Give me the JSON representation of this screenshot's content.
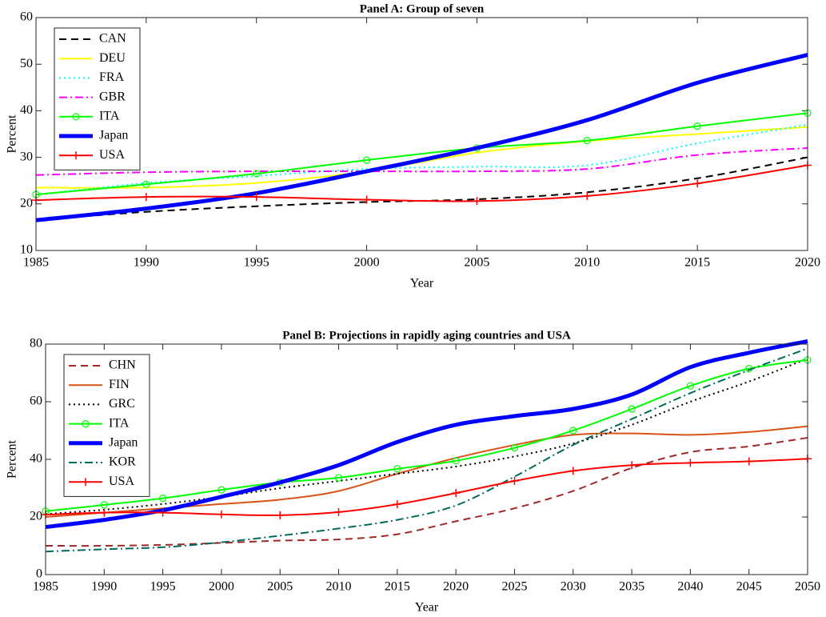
{
  "chart_data": [
    {
      "type": "line",
      "title": "Panel A: Group of seven",
      "xlabel": "Year",
      "ylabel": "Percent",
      "x": [
        1985,
        1990,
        1995,
        2000,
        2005,
        2010,
        2015,
        2020
      ],
      "xlim": [
        1985,
        2020
      ],
      "xticks": [
        1985,
        1990,
        1995,
        2000,
        2005,
        2010,
        2015,
        2020
      ],
      "ylim": [
        10,
        60
      ],
      "yticks": [
        10,
        20,
        30,
        40,
        50,
        60
      ],
      "legend": "upper left",
      "series": [
        {
          "name": "CAN",
          "color": "#000000",
          "style": "dashed",
          "values": [
            16.5,
            18.3,
            19.5,
            20.4,
            21,
            22.5,
            25.5,
            30
          ]
        },
        {
          "name": "DEU",
          "color": "#ffff00",
          "style": "solid",
          "values": [
            23.5,
            23.5,
            24.5,
            27,
            31,
            33.5,
            35,
            36.5
          ]
        },
        {
          "name": "FRA",
          "color": "#00ffff",
          "style": "dotted",
          "values": [
            22,
            24.5,
            26,
            27.5,
            28,
            28.3,
            33,
            37
          ]
        },
        {
          "name": "GBR",
          "color": "#ff00ff",
          "style": "dashdot",
          "values": [
            26.2,
            26.8,
            27,
            27,
            27,
            27.5,
            30.5,
            32
          ]
        },
        {
          "name": "ITA",
          "color": "#00ff00",
          "style": "solid",
          "marker": "circle",
          "values": [
            22,
            24.2,
            26.5,
            29.4,
            32,
            33.6,
            36.7,
            39.5
          ]
        },
        {
          "name": "Japan",
          "color": "#0000ff",
          "style": "thick",
          "values": [
            16.5,
            19,
            22.3,
            27,
            32,
            38,
            46,
            52
          ]
        },
        {
          "name": "USA",
          "color": "#ff0000",
          "style": "solid",
          "marker": "plus",
          "values": [
            20.8,
            21.5,
            21.5,
            20.9,
            20.6,
            21.7,
            24.4,
            28.3
          ]
        }
      ]
    },
    {
      "type": "line",
      "title": "Panel B: Projections in rapidly aging countries and USA",
      "xlabel": "Year",
      "ylabel": "Percent",
      "x": [
        1985,
        1990,
        1995,
        2000,
        2005,
        2010,
        2015,
        2020,
        2025,
        2030,
        2035,
        2040,
        2045,
        2050
      ],
      "xlim": [
        1985,
        2050
      ],
      "xticks": [
        1985,
        1990,
        1995,
        2000,
        2005,
        2010,
        2015,
        2020,
        2025,
        2030,
        2035,
        2040,
        2045,
        2050
      ],
      "ylim": [
        0,
        80
      ],
      "yticks": [
        0,
        20,
        40,
        60,
        80
      ],
      "legend": "upper left",
      "series": [
        {
          "name": "CHN",
          "color": "#a02828",
          "style": "dashed",
          "values": [
            10,
            10,
            10.3,
            11,
            11.8,
            12.2,
            14,
            18.5,
            23,
            29,
            37,
            42.5,
            44.5,
            47.5
          ]
        },
        {
          "name": "FIN",
          "color": "#d95319",
          "style": "solid",
          "values": [
            20,
            21.5,
            23,
            24.5,
            26,
            29,
            35,
            40.5,
            45,
            48.5,
            49,
            48.5,
            49.5,
            51.5
          ]
        },
        {
          "name": "GRC",
          "color": "#000000",
          "style": "dotted",
          "values": [
            21,
            22.5,
            24.5,
            27,
            30,
            32.5,
            35,
            37.5,
            41,
            45.5,
            52,
            60,
            67,
            75
          ]
        },
        {
          "name": "ITA",
          "color": "#00ff00",
          "style": "solid",
          "marker": "circle",
          "values": [
            22,
            24.2,
            26.5,
            29.4,
            32,
            33.6,
            36.7,
            39.5,
            44,
            50,
            57.5,
            65.5,
            71.5,
            74.5
          ]
        },
        {
          "name": "Japan",
          "color": "#0000ff",
          "style": "thick",
          "values": [
            16.5,
            19,
            22.3,
            27,
            32,
            38,
            46,
            52,
            55,
            57.5,
            62.5,
            72,
            77,
            81
          ]
        },
        {
          "name": "KOR",
          "color": "#006b5a",
          "style": "dashdot",
          "values": [
            8,
            8.8,
            9.5,
            11.2,
            13.5,
            16,
            19,
            24,
            34,
            45,
            54,
            63,
            71,
            78.5
          ]
        },
        {
          "name": "USA",
          "color": "#ff0000",
          "style": "solid",
          "marker": "plus",
          "values": [
            20.8,
            21.5,
            21.5,
            20.9,
            20.6,
            21.7,
            24.4,
            28.3,
            32.5,
            36,
            38,
            38.8,
            39.3,
            40.2
          ]
        }
      ]
    }
  ]
}
